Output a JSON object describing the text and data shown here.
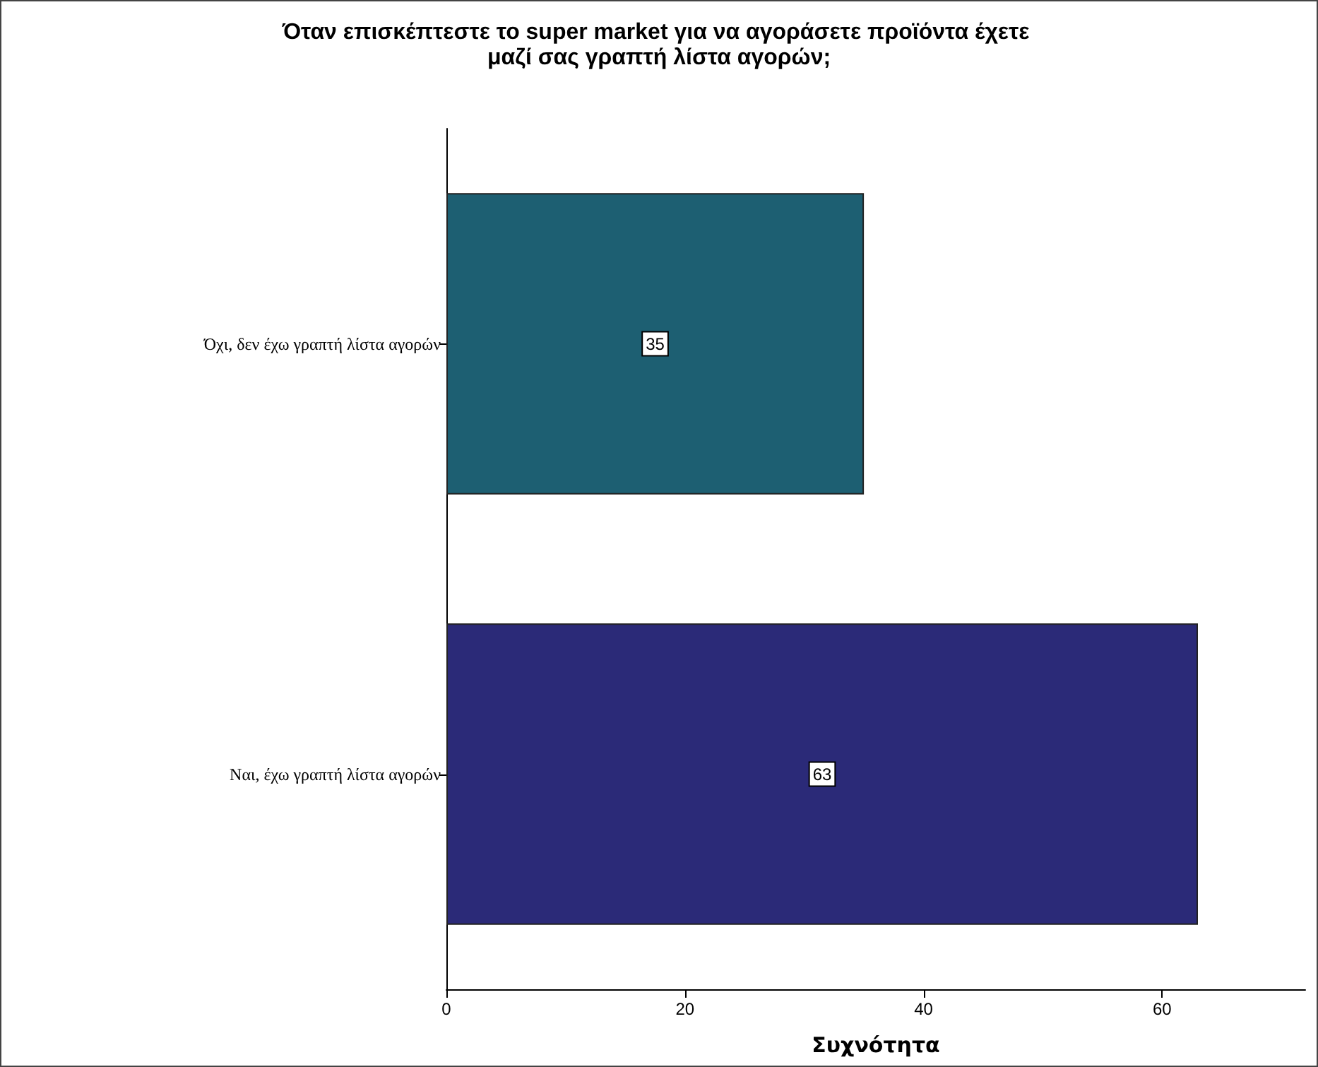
{
  "chart_data": {
    "type": "bar",
    "orientation": "horizontal",
    "title": "Όταν επισκέπτεστε το super market για να αγοράσετε προϊόντα έχετε μαζί σας γραπτή λίστα αγορών;",
    "categories": [
      "Όχι, δεν έχω γραπτή λίστα αγορών",
      "Ναι, έχω γραπτή λίστα αγορών"
    ],
    "values": [
      35,
      63
    ],
    "colors": [
      "#1d5f72",
      "#2b2a78"
    ],
    "xlabel": "Συχνότητα",
    "xlim": [
      0,
      72
    ],
    "xticks": [
      0,
      20,
      40,
      60
    ],
    "data_labels": true,
    "grid": false
  }
}
